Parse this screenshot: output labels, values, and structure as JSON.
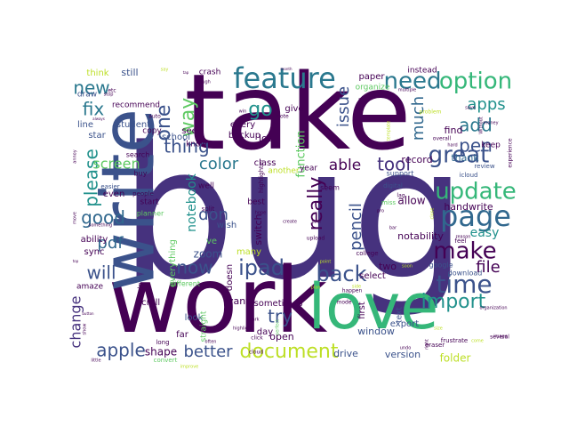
{
  "words": [
    {
      "text": "bug",
      "color": "#46327e",
      "weight": 100
    },
    {
      "text": "take",
      "color": "#440154",
      "weight": 82
    },
    {
      "text": "work",
      "color": "#440154",
      "weight": 72
    },
    {
      "text": "write",
      "color": "#3b528b",
      "weight": 62
    },
    {
      "text": "love",
      "color": "#35b779",
      "weight": 58
    },
    {
      "text": "feature",
      "color": "#2a788e",
      "weight": 30
    },
    {
      "text": "need",
      "color": "#2a788e",
      "weight": 24
    },
    {
      "text": "option",
      "color": "#35b779",
      "weight": 22
    },
    {
      "text": "page",
      "color": "#31688e",
      "weight": 26
    },
    {
      "text": "update",
      "color": "#35b779",
      "weight": 26
    },
    {
      "text": "great",
      "color": "#3b528b",
      "weight": 24
    },
    {
      "text": "make",
      "color": "#440154",
      "weight": 24
    },
    {
      "text": "time",
      "color": "#3b528b",
      "weight": 24
    },
    {
      "text": "back",
      "color": "#3b528b",
      "weight": 22
    },
    {
      "text": "ipad",
      "color": "#3b528b",
      "weight": 22
    },
    {
      "text": "document",
      "color": "#bddf26",
      "weight": 22
    },
    {
      "text": "please",
      "color": "#21918c",
      "weight": 22
    },
    {
      "text": "apple",
      "color": "#3b528b",
      "weight": 20
    },
    {
      "text": "import",
      "color": "#21918c",
      "weight": 18
    },
    {
      "text": "really",
      "color": "#440154",
      "weight": 22
    },
    {
      "text": "now",
      "color": "#3b528b",
      "weight": 18
    },
    {
      "text": "pen",
      "color": "#3b528b",
      "weight": 18
    },
    {
      "text": "add",
      "color": "#2a788e",
      "weight": 18
    },
    {
      "text": "one",
      "color": "#3b528b",
      "weight": 22
    },
    {
      "text": "way",
      "color": "#5ec962",
      "weight": 18
    },
    {
      "text": "try",
      "color": "#3b528b",
      "weight": 18
    },
    {
      "text": "go",
      "color": "#21918c",
      "weight": 18
    },
    {
      "text": "fix",
      "color": "#2a788e",
      "weight": 16
    },
    {
      "text": "new",
      "color": "#2a788e",
      "weight": 16
    },
    {
      "text": "thing",
      "color": "#3b528b",
      "weight": 16
    },
    {
      "text": "good",
      "color": "#31688e",
      "weight": 18
    },
    {
      "text": "will",
      "color": "#3b528b",
      "weight": 16
    },
    {
      "text": "pdf",
      "color": "#31688e",
      "weight": 16
    },
    {
      "text": "color",
      "color": "#2a788e",
      "weight": 16
    },
    {
      "text": "don",
      "color": "#3b528b",
      "weight": 16
    },
    {
      "text": "able",
      "color": "#440154",
      "weight": 16
    },
    {
      "text": "tool",
      "color": "#46327e",
      "weight": 16
    },
    {
      "text": "issue",
      "color": "#3b528b",
      "weight": 16
    },
    {
      "text": "much",
      "color": "#31688e",
      "weight": 14
    },
    {
      "text": "apps",
      "color": "#21918c",
      "weight": 14
    },
    {
      "text": "file",
      "color": "#440154",
      "weight": 14
    },
    {
      "text": "pencil",
      "color": "#3b528b",
      "weight": 16
    },
    {
      "text": "better",
      "color": "#3b528b",
      "weight": 14
    },
    {
      "text": "change",
      "color": "#46327e",
      "weight": 13
    },
    {
      "text": "screen",
      "color": "#5ec962",
      "weight": 13
    },
    {
      "text": "notebook",
      "color": "#21918c",
      "weight": 13
    },
    {
      "text": "function",
      "color": "#5ec962",
      "weight": 12
    },
    {
      "text": "easy",
      "color": "#21918c",
      "weight": 12
    },
    {
      "text": "thank",
      "color": "#31688e",
      "weight": 10
    },
    {
      "text": "record",
      "color": "#440154",
      "weight": 10
    },
    {
      "text": "find",
      "color": "#440154",
      "weight": 10
    },
    {
      "text": "handwrite",
      "color": "#440154",
      "weight": 9
    },
    {
      "text": "notability",
      "color": "#440154",
      "weight": 9
    },
    {
      "text": "allow",
      "color": "#440154",
      "weight": 10
    },
    {
      "text": "zoom",
      "color": "#3b528b",
      "weight": 10
    },
    {
      "text": "shape",
      "color": "#440154",
      "weight": 10
    },
    {
      "text": "switch",
      "color": "#440154",
      "weight": 10
    },
    {
      "text": "ability",
      "color": "#440154",
      "weight": 9
    },
    {
      "text": "sync",
      "color": "#440154",
      "weight": 8
    },
    {
      "text": "star",
      "color": "#3b528b",
      "weight": 9
    },
    {
      "text": "line",
      "color": "#3b528b",
      "weight": 9
    },
    {
      "text": "still",
      "color": "#3b528b",
      "weight": 10
    },
    {
      "text": "think",
      "color": "#bddf26",
      "weight": 8
    },
    {
      "text": "draw",
      "color": "#3b528b",
      "weight": 8
    },
    {
      "text": "recommend",
      "color": "#440154",
      "weight": 8
    },
    {
      "text": "student",
      "color": "#3b528b",
      "weight": 8
    },
    {
      "text": "school",
      "color": "#3b528b",
      "weight": 8
    },
    {
      "text": "backup",
      "color": "#440154",
      "weight": 8
    },
    {
      "text": "every",
      "color": "#440154",
      "weight": 8
    },
    {
      "text": "lot",
      "color": "#440154",
      "weight": 9
    },
    {
      "text": "class",
      "color": "#440154",
      "weight": 8
    },
    {
      "text": "give",
      "color": "#440154",
      "weight": 8
    },
    {
      "text": "want",
      "color": "#440154",
      "weight": 8
    },
    {
      "text": "sometimes",
      "color": "#440154",
      "weight": 8
    },
    {
      "text": "window",
      "color": "#3b528b",
      "weight": 8
    },
    {
      "text": "drive",
      "color": "#3b528b",
      "weight": 8
    },
    {
      "text": "version",
      "color": "#3b528b",
      "weight": 8
    },
    {
      "text": "folder",
      "color": "#bddf26",
      "weight": 9
    },
    {
      "text": "select",
      "color": "#440154",
      "weight": 8
    },
    {
      "text": "two",
      "color": "#440154",
      "weight": 8
    },
    {
      "text": "export",
      "color": "#3b528b",
      "weight": 8
    },
    {
      "text": "text",
      "color": "#3b528b",
      "weight": 8
    },
    {
      "text": "first",
      "color": "#440154",
      "weight": 8
    },
    {
      "text": "paper",
      "color": "#440154",
      "weight": 8
    },
    {
      "text": "organize",
      "color": "#5ec962",
      "weight": 7
    },
    {
      "text": "instead",
      "color": "#440154",
      "weight": 7
    },
    {
      "text": "keep",
      "color": "#440154",
      "weight": 7
    },
    {
      "text": "review",
      "color": "#3b528b",
      "weight": 6
    },
    {
      "text": "icloud",
      "color": "#3b528b",
      "weight": 5
    },
    {
      "text": "google",
      "color": "#3b528b",
      "weight": 7
    },
    {
      "text": "download",
      "color": "#3b528b",
      "weight": 6
    },
    {
      "text": "support",
      "color": "#3b528b",
      "weight": 6
    },
    {
      "text": "digital",
      "color": "#3b528b",
      "weight": 6
    },
    {
      "text": "college",
      "color": "#440154",
      "weight": 5
    },
    {
      "text": "upload",
      "color": "#440154",
      "weight": 4
    },
    {
      "text": "many",
      "color": "#bddf26",
      "weight": 8
    },
    {
      "text": "ve",
      "color": "#5ec962",
      "weight": 8
    },
    {
      "text": "wish",
      "color": "#3b528b",
      "weight": 8
    },
    {
      "text": "best",
      "color": "#440154",
      "weight": 8
    },
    {
      "text": "well",
      "color": "#440154",
      "weight": 8
    },
    {
      "text": "even",
      "color": "#440154",
      "weight": 8
    },
    {
      "text": "start",
      "color": "#440154",
      "weight": 7
    },
    {
      "text": "planner",
      "color": "#5ec962",
      "weight": 6
    },
    {
      "text": "buy",
      "color": "#440154",
      "weight": 6
    },
    {
      "text": "easier",
      "color": "#3b528b",
      "weight": 5
    },
    {
      "text": "copy",
      "color": "#440154",
      "weight": 6
    },
    {
      "text": "see",
      "color": "#440154",
      "weight": 7
    },
    {
      "text": "know",
      "color": "#440154",
      "weight": 6
    },
    {
      "text": "search",
      "color": "#440154",
      "weight": 6
    },
    {
      "text": "crash",
      "color": "#440154",
      "weight": 6
    },
    {
      "text": "look",
      "color": "#3b528b",
      "weight": 7
    },
    {
      "text": "day",
      "color": "#440154",
      "weight": 7
    },
    {
      "text": "open",
      "color": "#440154",
      "weight": 8
    },
    {
      "text": "scroll",
      "color": "#440154",
      "weight": 7
    },
    {
      "text": "far",
      "color": "#440154",
      "weight": 7
    },
    {
      "text": "long",
      "color": "#440154",
      "weight": 5
    },
    {
      "text": "amaze",
      "color": "#440154",
      "weight": 6
    },
    {
      "text": "everything",
      "color": "#5ec962",
      "weight": 7
    },
    {
      "text": "different",
      "color": "#5ec962",
      "weight": 6
    },
    {
      "text": "people",
      "color": "#440154",
      "weight": 5
    },
    {
      "text": "convert",
      "color": "#5ec962",
      "weight": 5
    },
    {
      "text": "help",
      "color": "#440154",
      "weight": 5
    },
    {
      "text": "straight",
      "color": "#5ec962",
      "weight": 6
    },
    {
      "text": "highlighter",
      "color": "#440154",
      "weight": 5
    },
    {
      "text": "frustrate",
      "color": "#440154",
      "weight": 5
    },
    {
      "text": "feel",
      "color": "#440154",
      "weight": 5
    },
    {
      "text": "year",
      "color": "#440154",
      "weight": 6
    },
    {
      "text": "seem",
      "color": "#440154",
      "weight": 5
    },
    {
      "text": "doesn",
      "color": "#440154",
      "weight": 7
    },
    {
      "text": "another",
      "color": "#bddf26",
      "weight": 6
    },
    {
      "text": "split",
      "color": "#440154",
      "weight": 5
    },
    {
      "text": "eraser",
      "color": "#440154",
      "weight": 5
    },
    {
      "text": "several",
      "color": "#440154",
      "weight": 5
    },
    {
      "text": "organization",
      "color": "#440154",
      "weight": 4
    },
    {
      "text": "lag",
      "color": "#440154",
      "weight": 4
    },
    {
      "text": "experience",
      "color": "#440154",
      "weight": 4
    },
    {
      "text": "problem",
      "color": "#bddf26",
      "weight": 4
    },
    {
      "text": "happen",
      "color": "#440154",
      "weight": 4
    },
    {
      "text": "mode",
      "color": "#440154",
      "weight": 4
    },
    {
      "text": "cloud",
      "color": "#440154",
      "weight": 4
    },
    {
      "text": "stop",
      "color": "#440154",
      "weight": 3
    },
    {
      "text": "etc",
      "color": "#440154",
      "weight": 4
    },
    {
      "text": "note",
      "color": "#440154",
      "weight": 4
    },
    {
      "text": "multiple",
      "color": "#440154",
      "weight": 4
    },
    {
      "text": "something",
      "color": "#440154",
      "weight": 4
    },
    {
      "text": "move",
      "color": "#440154",
      "weight": 4
    },
    {
      "text": "annoy",
      "color": "#440154",
      "weight": 4
    },
    {
      "text": "little",
      "color": "#440154",
      "weight": 4
    },
    {
      "text": "show",
      "color": "#440154",
      "weight": 3
    },
    {
      "text": "hope",
      "color": "#440154",
      "weight": 4
    },
    {
      "text": "create",
      "color": "#440154",
      "weight": 4
    },
    {
      "text": "perfect",
      "color": "#5ec962",
      "weight": 4
    },
    {
      "text": "plan",
      "color": "#bddf26",
      "weight": 4
    },
    {
      "text": "point",
      "color": "#bddf26",
      "weight": 4
    },
    {
      "text": "soon",
      "color": "#bddf26",
      "weight": 4
    },
    {
      "text": "miss",
      "color": "#5ec962",
      "weight": 5
    },
    {
      "text": "bar",
      "color": "#440154",
      "weight": 4
    },
    {
      "text": "pro",
      "color": "#440154",
      "weight": 4
    },
    {
      "text": "close",
      "color": "#bddf26",
      "weight": 4
    },
    {
      "text": "reason",
      "color": "#440154",
      "weight": 4
    },
    {
      "text": "overall",
      "color": "#440154",
      "weight": 4
    },
    {
      "text": "hard",
      "color": "#440154",
      "weight": 3
    },
    {
      "text": "template",
      "color": "#bddf26",
      "weight": 3
    },
    {
      "text": "money",
      "color": "#440154",
      "weight": 3
    },
    {
      "text": "auto",
      "color": "#440154",
      "weight": 4
    },
    {
      "text": "click",
      "color": "#440154",
      "weight": 4
    },
    {
      "text": "undo",
      "color": "#440154",
      "weight": 4
    },
    {
      "text": "dark",
      "color": "#440154",
      "weight": 3
    },
    {
      "text": "size",
      "color": "#bddf26",
      "weight": 3
    },
    {
      "text": "come",
      "color": "#bddf26",
      "weight": 3
    },
    {
      "text": "highlight",
      "color": "#440154",
      "weight": 4
    },
    {
      "text": "improve",
      "color": "#bddf26",
      "weight": 3
    },
    {
      "text": "often",
      "color": "#440154",
      "weight": 3
    },
    {
      "text": "right",
      "color": "#440154",
      "weight": 3
    },
    {
      "text": "image",
      "color": "#440154",
      "weight": 3
    },
    {
      "text": "user",
      "color": "#440154",
      "weight": 3
    },
    {
      "text": "side",
      "color": "#bddf26",
      "weight": 3
    },
    {
      "text": "win",
      "color": "#440154",
      "weight": 3
    },
    {
      "text": "save",
      "color": "#440154",
      "weight": 3
    },
    {
      "text": "though",
      "color": "#440154",
      "weight": 3
    },
    {
      "text": "always",
      "color": "#440154",
      "weight": 3
    },
    {
      "text": "top",
      "color": "#440154",
      "weight": 3
    },
    {
      "text": "say",
      "color": "#bddf26",
      "weight": 3
    },
    {
      "text": "month",
      "color": "#440154",
      "weight": 3
    },
    {
      "text": "Without",
      "color": "#440154",
      "weight": 3
    },
    {
      "text": "freeze",
      "color": "#440154",
      "weight": 3
    },
    {
      "text": "button",
      "color": "#440154",
      "weight": 3
    },
    {
      "text": "tap",
      "color": "#440154",
      "weight": 3
    }
  ]
}
